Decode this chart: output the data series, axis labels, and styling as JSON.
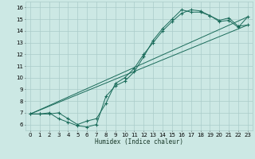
{
  "xlabel": "Humidex (Indice chaleur)",
  "xlim": [
    -0.5,
    23.5
  ],
  "ylim": [
    5.5,
    16.5
  ],
  "xticks": [
    0,
    1,
    2,
    3,
    4,
    5,
    6,
    7,
    8,
    9,
    10,
    11,
    12,
    13,
    14,
    15,
    16,
    17,
    18,
    19,
    20,
    21,
    22,
    23
  ],
  "yticks": [
    6,
    7,
    8,
    9,
    10,
    11,
    12,
    13,
    14,
    15,
    16
  ],
  "bg_color": "#cce8e4",
  "grid_color": "#aaccca",
  "line_color": "#1a6b5a",
  "curve1_x": [
    0,
    1,
    2,
    3,
    4,
    5,
    6,
    7,
    8,
    9,
    10,
    11,
    12,
    13,
    14,
    15,
    16,
    17,
    18,
    19,
    20,
    21,
    22,
    23
  ],
  "curve1_y": [
    6.9,
    6.9,
    7.0,
    6.5,
    6.2,
    5.9,
    5.8,
    6.0,
    8.4,
    9.3,
    9.7,
    10.5,
    11.8,
    13.2,
    14.2,
    15.0,
    15.8,
    15.6,
    15.6,
    15.3,
    14.9,
    15.1,
    14.4,
    14.5
  ],
  "curve2_x": [
    0,
    1,
    2,
    3,
    4,
    5,
    6,
    7,
    8,
    9,
    10,
    11,
    12,
    13,
    14,
    15,
    16,
    17,
    18,
    19,
    20,
    21,
    22,
    23
  ],
  "curve2_y": [
    6.9,
    6.9,
    6.9,
    7.0,
    6.5,
    6.0,
    6.3,
    6.5,
    7.8,
    9.5,
    10.0,
    10.8,
    12.0,
    13.0,
    14.0,
    14.8,
    15.5,
    15.8,
    15.7,
    15.3,
    14.8,
    14.9,
    14.3,
    15.2
  ],
  "line1_x": [
    0,
    23
  ],
  "line1_y": [
    6.9,
    14.5
  ],
  "line2_x": [
    0,
    23
  ],
  "line2_y": [
    6.9,
    15.2
  ]
}
